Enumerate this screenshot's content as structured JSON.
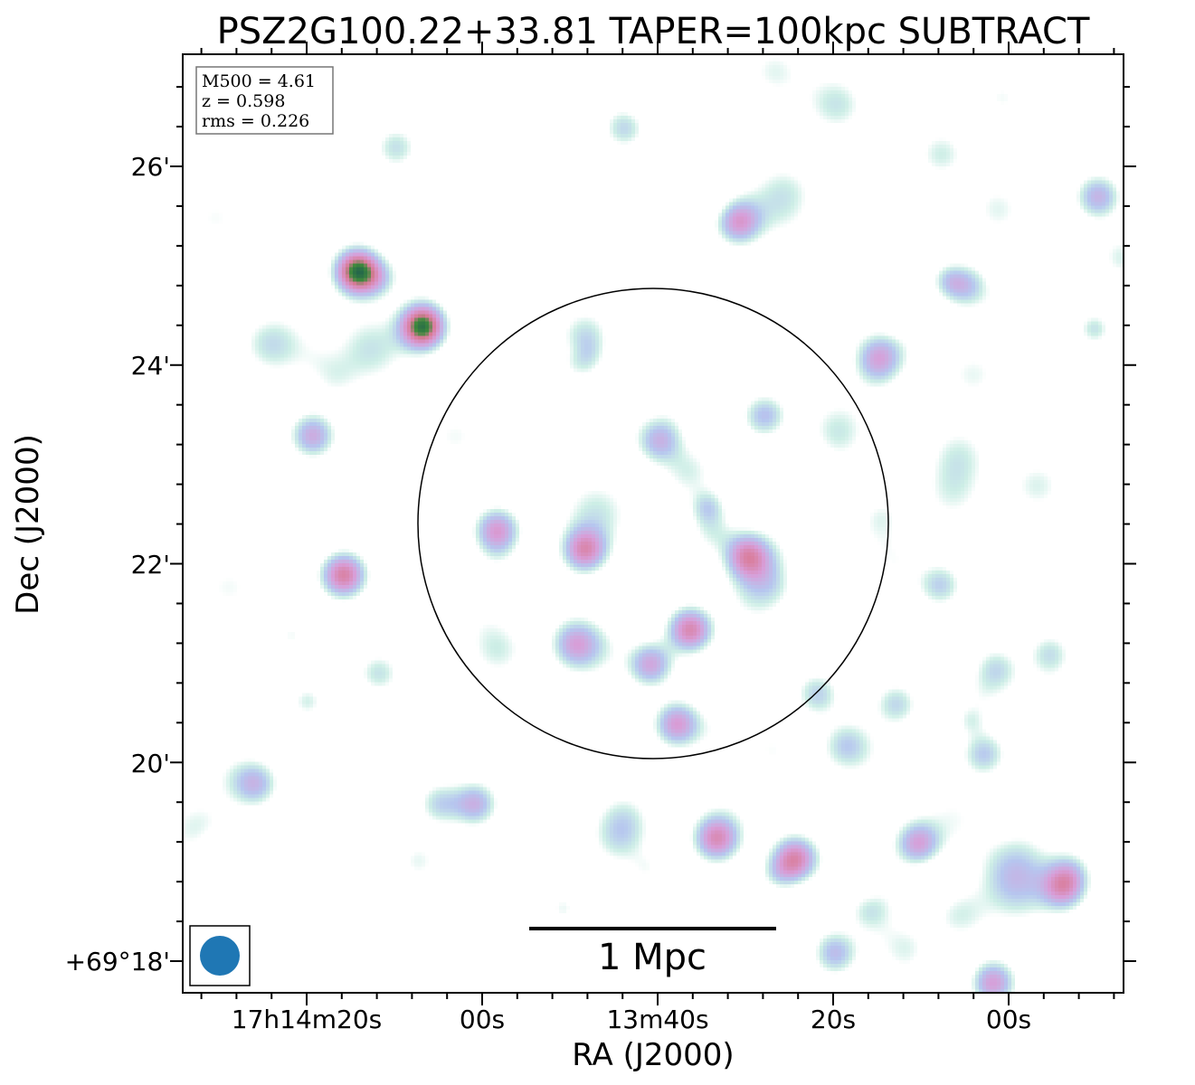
{
  "chart_data": {
    "type": "heatmap",
    "title": "PSZ2G100.22+33.81 TAPER=100kpc SUBTRACT",
    "xlabel": "RA (J2000)",
    "ylabel": "Dec (J2000)",
    "x_ticks": [
      "17h14m20s",
      "00s",
      "13m40s",
      "20s",
      "00s"
    ],
    "y_ticks": [
      "26'",
      "24'",
      "22'",
      "20'",
      "+69°18'"
    ],
    "info_box": {
      "m500": "M500 = 4.61",
      "z": "z = 0.598",
      "rms": "rms = 0.226"
    },
    "scale_bar_label": "1 Mpc",
    "circle": {
      "ra": "17h13m40s",
      "dec": "+69°22'26\"",
      "radius_arcmin": 2.4
    },
    "beam": {
      "shape": "circle",
      "color": "#1f77b4"
    },
    "colormap": [
      "#ffffff",
      "#cdeee6",
      "#b6c6ef",
      "#d89ed8",
      "#d97a96",
      "#3f8a3c",
      "#1e5e4e"
    ],
    "sources": [
      {
        "ra_sec": 1454.4,
        "dec_arcmin": 24.95,
        "peak": 1.0
      },
      {
        "ra_sec": 1447.0,
        "dec_arcmin": 24.4,
        "peak": 1.0
      },
      {
        "ra_sec": 1456.0,
        "dec_arcmin": 21.9,
        "peak": 0.72
      },
      {
        "ra_sec": 1416.5,
        "dec_arcmin": 21.35,
        "peak": 0.68
      },
      {
        "ra_sec": 1404.5,
        "dec_arcmin": 19.05,
        "peak": 0.66
      },
      {
        "ra_sec": 1428.5,
        "dec_arcmin": 22.15,
        "peak": 0.62
      },
      {
        "ra_sec": 1413.5,
        "dec_arcmin": 19.25,
        "peak": 0.6
      },
      {
        "ra_sec": 1410.0,
        "dec_arcmin": 22.1,
        "peak": 0.58
      },
      {
        "ra_sec": 1411.0,
        "dec_arcmin": 25.45,
        "peak": 0.55
      },
      {
        "ra_sec": 1438.5,
        "dec_arcmin": 22.35,
        "peak": 0.55
      },
      {
        "ra_sec": 1390.5,
        "dec_arcmin": 19.2,
        "peak": 0.52
      },
      {
        "ra_sec": 1374.0,
        "dec_arcmin": 18.75,
        "peak": 0.52
      },
      {
        "ra_sec": 1418.0,
        "dec_arcmin": 20.4,
        "peak": 0.55
      },
      {
        "ra_sec": 1382.0,
        "dec_arcmin": 17.8,
        "peak": 0.55
      },
      {
        "ra_sec": 1459.5,
        "dec_arcmin": 23.3,
        "peak": 0.48
      },
      {
        "ra_sec": 1421.0,
        "dec_arcmin": 21.0,
        "peak": 0.5
      },
      {
        "ra_sec": 1430.0,
        "dec_arcmin": 21.2,
        "peak": 0.44
      },
      {
        "ra_sec": 1420.0,
        "dec_arcmin": 23.25,
        "peak": 0.42
      },
      {
        "ra_sec": 1408.0,
        "dec_arcmin": 23.5,
        "peak": 0.38
      },
      {
        "ra_sec": 1395.0,
        "dec_arcmin": 24.1,
        "peak": 0.36
      },
      {
        "ra_sec": 1441.0,
        "dec_arcmin": 19.6,
        "peak": 0.44
      },
      {
        "ra_sec": 1400.0,
        "dec_arcmin": 18.1,
        "peak": 0.4
      },
      {
        "ra_sec": 1370.0,
        "dec_arcmin": 25.7,
        "peak": 0.44
      },
      {
        "ra_sec": 1385.0,
        "dec_arcmin": 24.8,
        "peak": 0.35
      },
      {
        "ra_sec": 1466.0,
        "dec_arcmin": 19.8,
        "peak": 0.36
      },
      {
        "ra_sec": 1388.0,
        "dec_arcmin": 21.8,
        "peak": 0.32
      },
      {
        "ra_sec": 1383.0,
        "dec_arcmin": 20.1,
        "peak": 0.34
      },
      {
        "ra_sec": 1424.0,
        "dec_arcmin": 26.4,
        "peak": 0.32
      },
      {
        "ra_sec": 1445.0,
        "dec_arcmin": 19.6,
        "peak": 0.3
      },
      {
        "ra_sec": 1452.0,
        "dec_arcmin": 20.9,
        "peak": 0.3
      },
      {
        "ra_sec": 1393.0,
        "dec_arcmin": 20.6,
        "peak": 0.3
      },
      {
        "ra_sec": 1429.0,
        "dec_arcmin": 24.1,
        "peak": 0.3
      },
      {
        "ra_sec": 1402.0,
        "dec_arcmin": 20.7,
        "peak": 0.32
      },
      {
        "ra_sec": 1450.0,
        "dec_arcmin": 26.2,
        "peak": 0.28
      },
      {
        "ra_sec": 1375.5,
        "dec_arcmin": 21.1,
        "peak": 0.28
      }
    ]
  }
}
